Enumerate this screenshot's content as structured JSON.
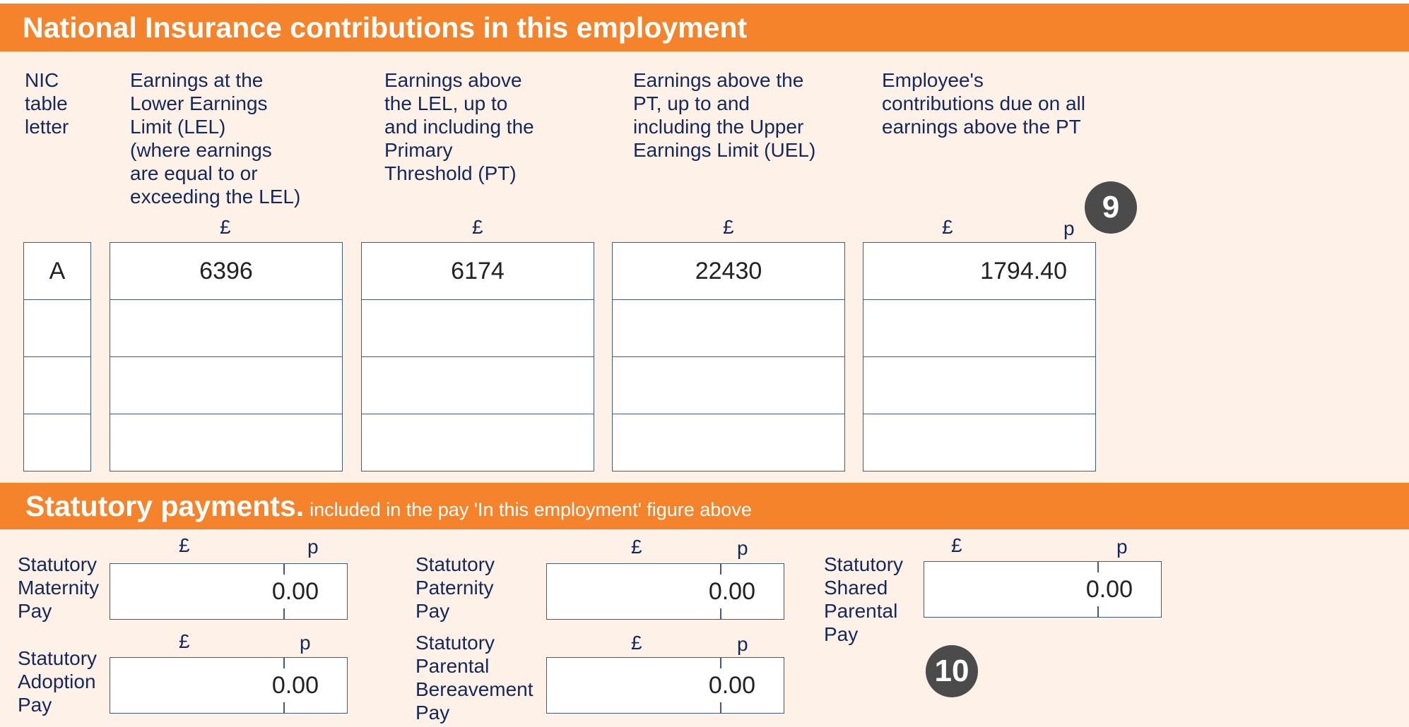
{
  "nic_section": {
    "title": "National Insurance contributions in this employment",
    "columns": [
      {
        "header": "NIC\ntable\nletter",
        "unit": ""
      },
      {
        "header": "Earnings at the\nLower Earnings\nLimit (LEL)\n(where earnings\nare equal to or\nexceeding the LEL)",
        "unit": "£"
      },
      {
        "header": "Earnings above\nthe LEL, up to\nand including the\nPrimary\nThreshold (PT)",
        "unit": "£"
      },
      {
        "header": "Earnings above the\nPT, up to and\nincluding the Upper\nEarnings Limit (UEL)",
        "unit": "£"
      },
      {
        "header": "Employee's\ncontributions due on all\nearnings above the PT",
        "unit": "£",
        "unit_p": "p"
      }
    ],
    "rows": [
      [
        "A",
        "6396",
        "6174",
        "22430",
        "1794.40"
      ],
      [
        "",
        "",
        "",
        "",
        ""
      ],
      [
        "",
        "",
        "",
        "",
        ""
      ],
      [
        "",
        "",
        "",
        "",
        ""
      ]
    ],
    "badge": "9"
  },
  "statutory_section": {
    "title": "Statutory payments.",
    "subtitle": "included in the pay 'In this employment' figure above",
    "currency_pound": "£",
    "currency_pence": "p",
    "fields": {
      "maternity": {
        "label": "Statutory\nMaternity\nPay",
        "value": "0.00"
      },
      "paternity": {
        "label": "Statutory\nPaternity\nPay",
        "value": "0.00"
      },
      "shared_parental": {
        "label": "Statutory\nShared\nParental\nPay",
        "value": "0.00"
      },
      "adoption": {
        "label": "Statutory\nAdoption\nPay",
        "value": "0.00"
      },
      "bereavement": {
        "label": "Statutory\nParental\nBereavement\nPay",
        "value": "0.00"
      }
    },
    "badge": "10"
  }
}
